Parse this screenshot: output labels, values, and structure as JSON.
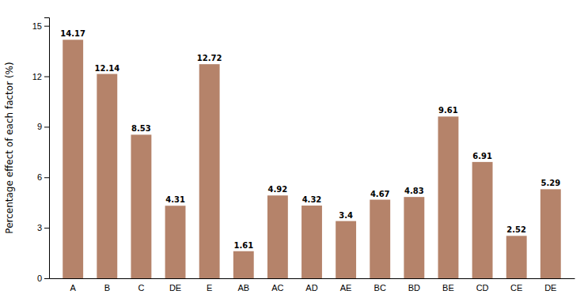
{
  "chart_data": {
    "type": "bar",
    "categories": [
      "A",
      "B",
      "C",
      "DE",
      "E",
      "AB",
      "AC",
      "AD",
      "AE",
      "BC",
      "BD",
      "BE",
      "CD",
      "CE",
      "DE"
    ],
    "values": [
      14.17,
      12.14,
      8.53,
      4.31,
      12.72,
      1.61,
      4.92,
      4.32,
      3.4,
      4.67,
      4.83,
      9.61,
      6.91,
      2.52,
      5.29
    ],
    "color": "#b5836a",
    "ylabel": "Percentage effect of each factor (%)",
    "ylim": [
      0,
      15.5
    ],
    "yticks": [
      0,
      3,
      6,
      9,
      12,
      15
    ],
    "grid": false,
    "data_labels": true
  }
}
